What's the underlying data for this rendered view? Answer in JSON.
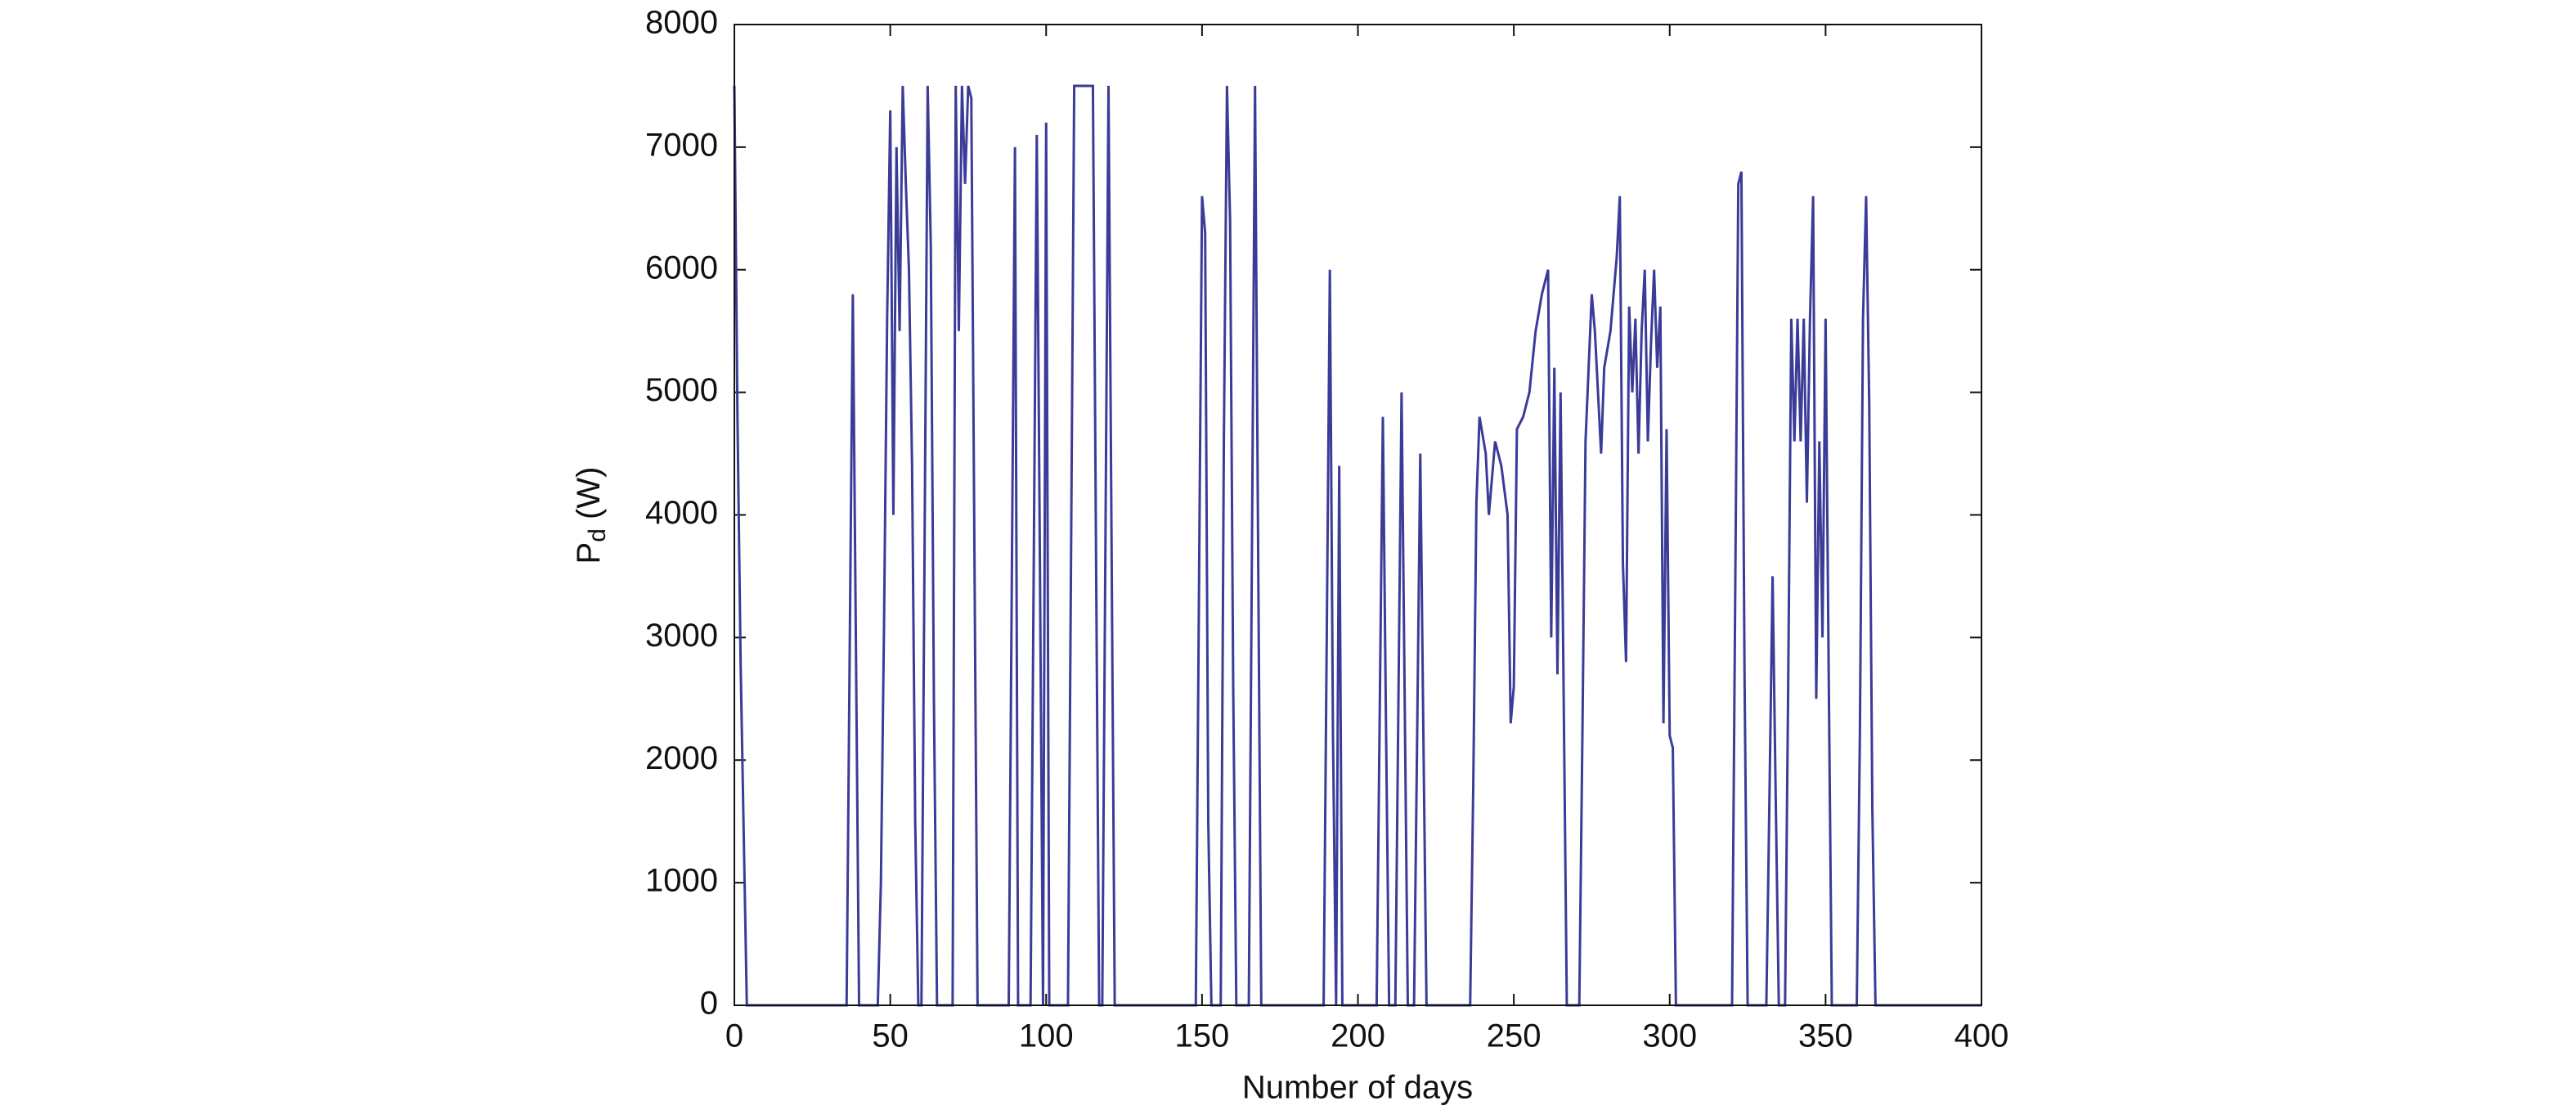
{
  "chart_data": {
    "type": "line",
    "xlabel": "Number of days",
    "ylabel": [
      "P",
      "d",
      " (W)"
    ],
    "color": "#3b3b98",
    "xlim": [
      0,
      400
    ],
    "xticks": [
      0,
      50,
      100,
      150,
      200,
      250,
      300,
      350,
      400
    ],
    "ylim": [
      0,
      8000
    ],
    "yticks": [
      0,
      1000,
      2000,
      3000,
      4000,
      5000,
      6000,
      7000,
      8000
    ],
    "x": [
      0,
      1,
      2,
      3,
      4,
      36,
      37,
      38,
      39,
      40,
      46,
      47,
      48,
      49,
      50,
      51,
      52,
      53,
      54,
      55,
      56,
      57,
      58,
      59,
      60,
      61,
      62,
      63,
      64,
      65,
      70,
      71,
      72,
      73,
      74,
      75,
      76,
      77,
      78,
      88,
      89,
      90,
      91,
      95,
      96,
      97,
      98,
      99,
      100,
      101,
      107,
      108,
      109,
      115,
      116,
      117,
      118,
      119,
      120,
      121,
      122,
      148,
      149,
      150,
      151,
      152,
      153,
      156,
      157,
      158,
      159,
      160,
      161,
      165,
      166,
      167,
      168,
      169,
      189,
      190,
      191,
      192,
      193,
      194,
      195,
      206,
      207,
      208,
      209,
      210,
      212,
      213,
      214,
      215,
      216,
      218,
      219,
      220,
      221,
      222,
      236,
      237,
      238,
      239,
      241,
      242,
      244,
      246,
      248,
      249,
      250,
      251,
      253,
      255,
      257,
      259,
      261,
      262,
      263,
      264,
      265,
      266,
      267,
      271,
      272,
      273,
      275,
      276,
      278,
      279,
      281,
      283,
      284,
      285,
      286,
      287,
      288,
      289,
      290,
      291,
      292,
      293,
      294,
      295,
      296,
      297,
      298,
      299,
      300,
      301,
      302,
      320,
      321,
      322,
      323,
      324,
      325,
      331,
      332,
      333,
      334,
      335,
      337,
      338,
      339,
      340,
      341,
      342,
      343,
      344,
      345,
      346,
      347,
      348,
      349,
      350,
      351,
      352,
      360,
      361,
      362,
      363,
      364,
      365,
      366,
      400
    ],
    "values": [
      7500,
      4800,
      2800,
      1400,
      0,
      0,
      2900,
      5800,
      2900,
      0,
      0,
      1000,
      3100,
      5600,
      7300,
      4000,
      7000,
      5500,
      7500,
      6700,
      6000,
      4400,
      1500,
      0,
      0,
      3700,
      7500,
      6200,
      2500,
      0,
      0,
      7500,
      5500,
      7500,
      6700,
      7500,
      7400,
      3700,
      0,
      0,
      3500,
      7000,
      0,
      0,
      3500,
      7100,
      3600,
      0,
      7200,
      0,
      0,
      3700,
      7500,
      7500,
      3700,
      0,
      0,
      3700,
      7500,
      3700,
      0,
      0,
      3300,
      6600,
      6300,
      1500,
      0,
      0,
      4600,
      7500,
      6400,
      2600,
      0,
      0,
      3700,
      7500,
      3700,
      0,
      0,
      3000,
      6000,
      2200,
      0,
      4400,
      0,
      0,
      2400,
      4800,
      2300,
      0,
      0,
      2500,
      5000,
      2500,
      0,
      0,
      2200,
      4500,
      2200,
      0,
      0,
      1800,
      4100,
      4800,
      4500,
      4000,
      4600,
      4400,
      4000,
      2300,
      2600,
      4700,
      4800,
      5000,
      5500,
      5800,
      6000,
      3000,
      5200,
      2700,
      5000,
      2500,
      0,
      0,
      2200,
      4600,
      5800,
      5500,
      4500,
      5200,
      5500,
      6100,
      6600,
      3600,
      2800,
      5700,
      5000,
      5600,
      4500,
      5500,
      6000,
      4600,
      5400,
      6000,
      5200,
      5700,
      2300,
      4700,
      2200,
      2100,
      0,
      0,
      3300,
      6700,
      6800,
      2700,
      0,
      0,
      1700,
      3500,
      1700,
      0,
      0,
      2600,
      5600,
      4600,
      5600,
      4600,
      5600,
      4100,
      5600,
      6600,
      2500,
      4600,
      3000,
      5600,
      2700,
      0,
      0,
      2200,
      5600,
      6600,
      4900,
      1600,
      0,
      0
    ]
  }
}
